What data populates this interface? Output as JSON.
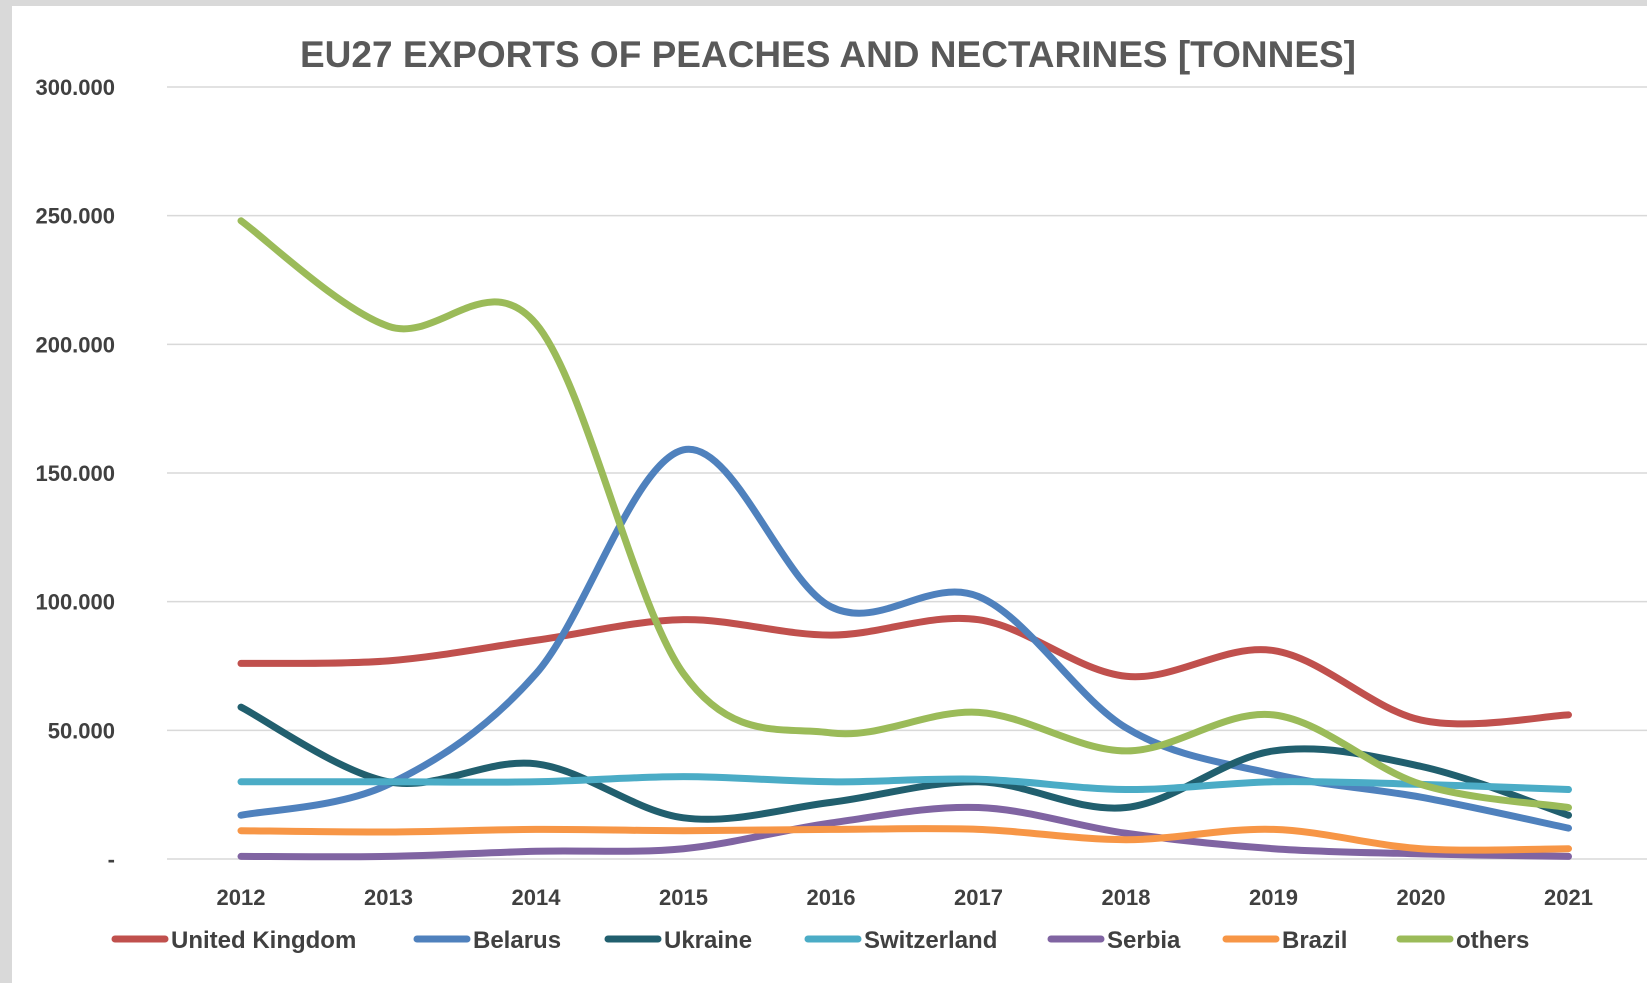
{
  "chart_data": {
    "type": "line",
    "title": "EU27 EXPORTS OF PEACHES AND NECTARINES [TONNES]",
    "xlabel": "",
    "ylabel": "",
    "categories": [
      "2012",
      "2013",
      "2014",
      "2015",
      "2016",
      "2017",
      "2018",
      "2019",
      "2020",
      "2021"
    ],
    "ylim": [
      0,
      300000
    ],
    "y_ticks": [
      {
        "value": 0,
        "label": "-"
      },
      {
        "value": 50000,
        "label": "50.000"
      },
      {
        "value": 100000,
        "label": "100.000"
      },
      {
        "value": 150000,
        "label": "150.000"
      },
      {
        "value": 200000,
        "label": "200.000"
      },
      {
        "value": 250000,
        "label": "250.000"
      },
      {
        "value": 300000,
        "label": "300.000"
      }
    ],
    "grid": true,
    "smooth": true,
    "legend_position": "bottom",
    "series": [
      {
        "name": "United Kingdom",
        "color": "#c0504d",
        "values": [
          76000,
          77000,
          85000,
          93000,
          87000,
          93000,
          71000,
          81000,
          54000,
          56000
        ]
      },
      {
        "name": "Belarus",
        "color": "#4f81bd",
        "values": [
          17000,
          29000,
          72000,
          159000,
          98000,
          102000,
          51000,
          33000,
          24000,
          12000
        ]
      },
      {
        "name": "Ukraine",
        "color": "#215f6e",
        "values": [
          59000,
          30000,
          37000,
          16000,
          22000,
          30000,
          20000,
          42000,
          36000,
          17000
        ]
      },
      {
        "name": "Switzerland",
        "color": "#4bacc6",
        "values": [
          30000,
          30000,
          30000,
          32000,
          30000,
          31000,
          27000,
          30000,
          29000,
          27000
        ]
      },
      {
        "name": "Serbia",
        "color": "#8064a2",
        "values": [
          1000,
          1000,
          3000,
          4000,
          14000,
          20000,
          10000,
          4000,
          2000,
          1000
        ]
      },
      {
        "name": "Brazil",
        "color": "#f79646",
        "values": [
          11000,
          10500,
          11500,
          11000,
          11500,
          11500,
          7500,
          11500,
          4000,
          4000
        ]
      },
      {
        "name": "others",
        "color": "#9bbb59",
        "values": [
          248000,
          207000,
          208000,
          72000,
          49000,
          57000,
          42000,
          56000,
          29000,
          20000
        ]
      }
    ]
  }
}
